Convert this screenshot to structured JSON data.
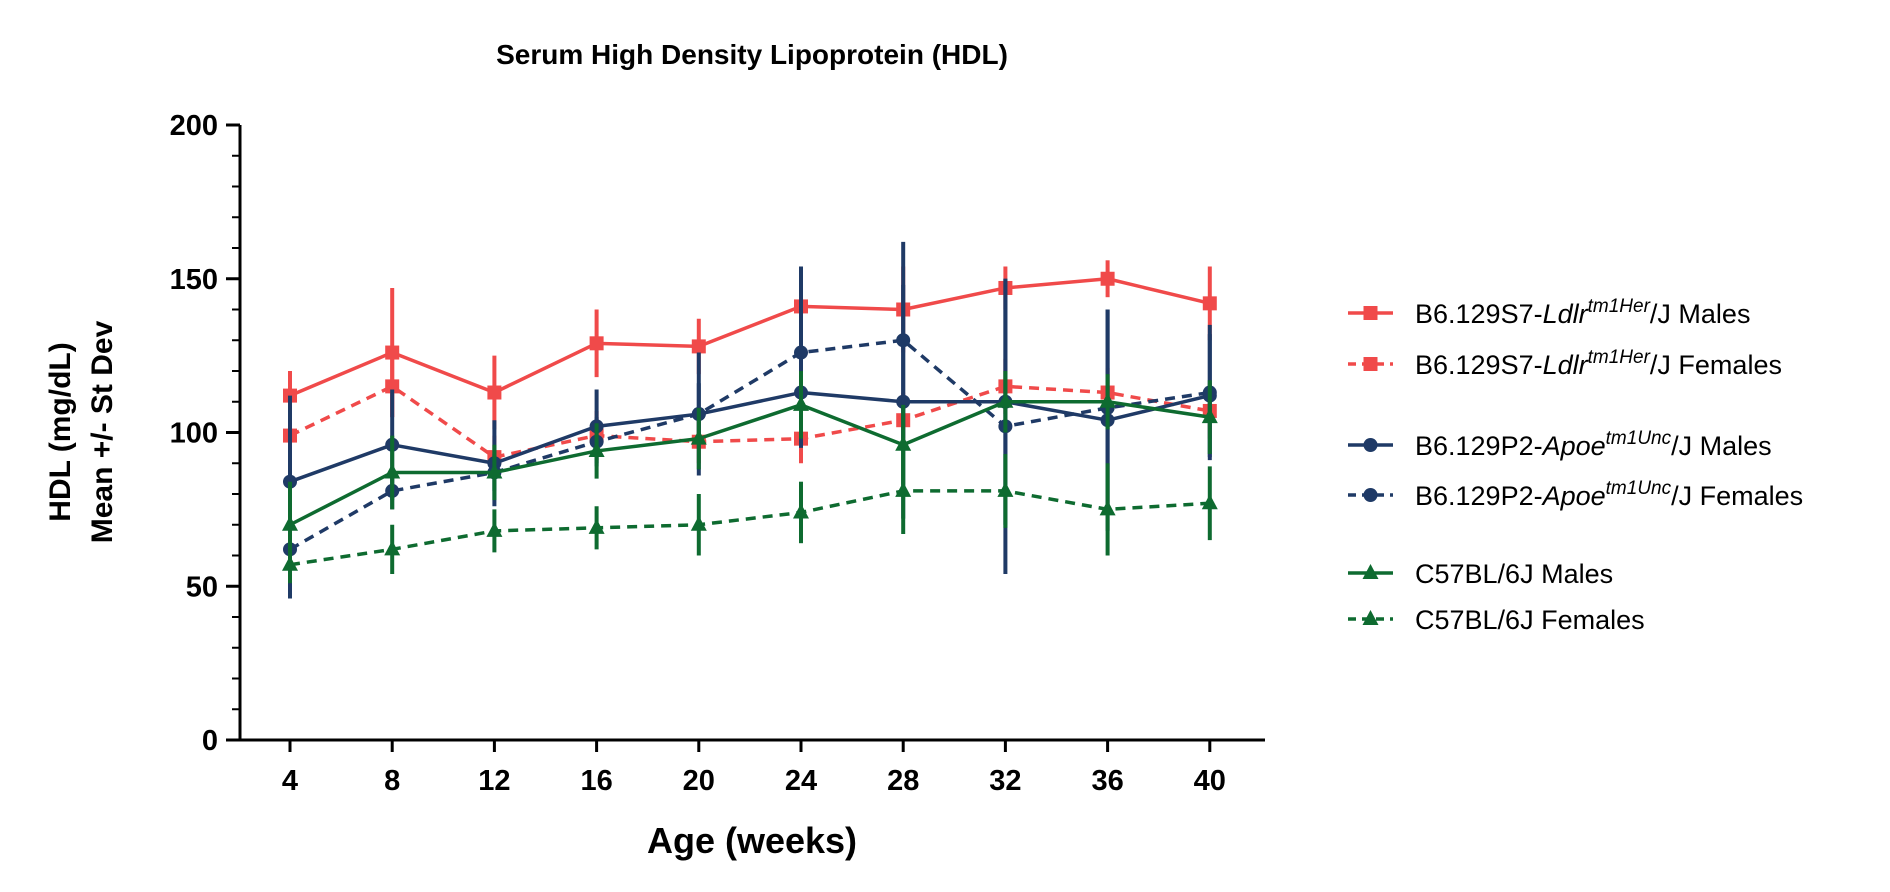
{
  "chart_data": {
    "type": "line",
    "title": "Serum High Density Lipoprotein (HDL)",
    "xlabel": "Age (weeks)",
    "ylabel_line1": "HDL (mg/dL)",
    "ylabel_line2": "Mean +/-  St Dev",
    "x": [
      4,
      8,
      12,
      16,
      20,
      24,
      28,
      32,
      36,
      40
    ],
    "x_tick_labels": [
      "4",
      "8",
      "12",
      "16",
      "20",
      "24",
      "28",
      "32",
      "36",
      "40"
    ],
    "ylim": [
      0,
      200
    ],
    "y_ticks": [
      0,
      50,
      100,
      150,
      200
    ],
    "y_tick_labels": [
      "0",
      "50",
      "100",
      "150",
      "200"
    ],
    "legend_position": "right",
    "series": [
      {
        "legend_prefix": "B6.129S7-",
        "legend_italic": "Ldlr",
        "legend_sup": "tm1Her",
        "legend_suffix": "/J Males",
        "color": "#f04a4a",
        "dashed": false,
        "marker": "square",
        "values": [
          112,
          126,
          113,
          129,
          128,
          141,
          140,
          147,
          150,
          142
        ],
        "err": [
          8,
          21,
          12,
          11,
          9,
          13,
          14,
          7,
          6,
          12
        ]
      },
      {
        "legend_prefix": "B6.129S7-",
        "legend_italic": "Ldlr",
        "legend_sup": "tm1Her",
        "legend_suffix": "/J Females",
        "color": "#f04a4a",
        "dashed": true,
        "marker": "square",
        "values": [
          99,
          115,
          92,
          99,
          97,
          98,
          104,
          115,
          113,
          107
        ],
        "err": [
          8,
          10,
          7,
          8,
          7,
          8,
          9,
          9,
          8,
          9
        ]
      },
      {
        "legend_prefix": "B6.129P2-",
        "legend_italic": "Apoe",
        "legend_sup": "tm1Unc",
        "legend_suffix": "/J Males",
        "color": "#1f3a66",
        "dashed": false,
        "marker": "circle",
        "values": [
          84,
          96,
          90,
          102,
          106,
          113,
          110,
          110,
          104,
          112
        ],
        "err": [
          28,
          18,
          14,
          12,
          20,
          18,
          38,
          40,
          36,
          20
        ]
      },
      {
        "legend_prefix": "B6.129P2-",
        "legend_italic": "Apoe",
        "legend_sup": "tm1Unc",
        "legend_suffix": "/J Females",
        "color": "#1f3a66",
        "dashed": true,
        "marker": "circle",
        "values": [
          62,
          81,
          87,
          97,
          106,
          126,
          130,
          102,
          108,
          113
        ],
        "err": [
          16,
          6,
          6,
          8,
          10,
          28,
          32,
          48,
          32,
          22
        ]
      },
      {
        "legend_prefix": "C57BL/6J Males",
        "legend_italic": "",
        "legend_sup": "",
        "legend_suffix": "",
        "color": "#0e6b30",
        "dashed": false,
        "marker": "triangle",
        "values": [
          70,
          87,
          87,
          94,
          98,
          109,
          96,
          110,
          110,
          105
        ],
        "err": [
          14,
          12,
          9,
          9,
          10,
          11,
          13,
          10,
          9,
          12
        ]
      },
      {
        "legend_prefix": "C57BL/6J Females",
        "legend_italic": "",
        "legend_sup": "",
        "legend_suffix": "",
        "color": "#0e6b30",
        "dashed": true,
        "marker": "triangle",
        "values": [
          57,
          62,
          68,
          69,
          70,
          74,
          81,
          81,
          75,
          77
        ],
        "err": [
          6,
          8,
          7,
          7,
          10,
          10,
          14,
          12,
          15,
          12
        ]
      }
    ]
  }
}
